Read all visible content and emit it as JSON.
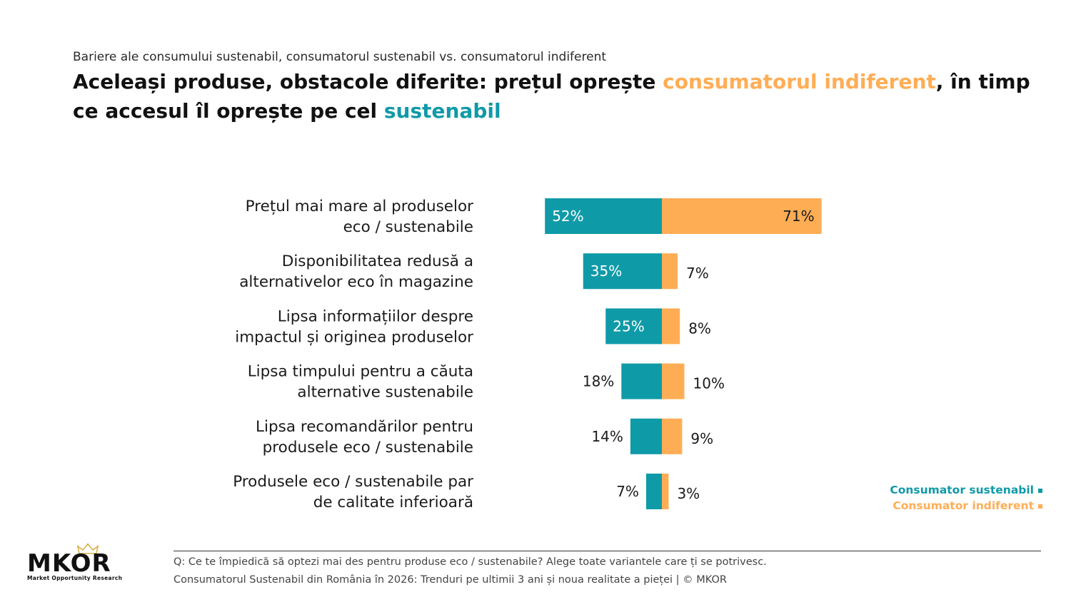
{
  "header": {
    "subtitle": "Bariere ale consumului sustenabil, consumatorul sustenabil vs. consumatorul indiferent",
    "title_part1": "Aceleași produse, obstacole diferite: prețul oprește ",
    "title_highlight1": "consumatorul indiferent",
    "title_part2": ", în timp ce accesul îl oprește pe cel ",
    "title_highlight2": "sustenabil"
  },
  "colors": {
    "sustenabil": "#0f9aa8",
    "indiferent": "#ffad55"
  },
  "chart_data": {
    "type": "bar",
    "orientation": "horizontal-diverging",
    "categories": [
      [
        "Prețul mai mare al produselor",
        "eco / sustenabile"
      ],
      [
        "Disponibilitatea redusă a",
        "alternativelor eco în magazine"
      ],
      [
        "Lipsa informațiilor despre",
        "impactul și originea produselor"
      ],
      [
        "Lipsa timpului pentru a căuta",
        "alternative sustenabile"
      ],
      [
        "Lipsa recomandărilor pentru",
        "produsele eco / sustenabile"
      ],
      [
        "Produsele eco / sustenabile par",
        "de calitate inferioară"
      ]
    ],
    "series": [
      {
        "name": "Consumator sustenabil",
        "values": [
          52,
          35,
          25,
          18,
          14,
          7
        ],
        "labels": [
          "52%",
          "35%",
          "25%",
          "18%",
          "14%",
          "7%"
        ]
      },
      {
        "name": "Consumator indiferent",
        "values": [
          71,
          7,
          8,
          10,
          9,
          3
        ],
        "labels": [
          "71%",
          "7%",
          "8%",
          "10%",
          "9%",
          "3%"
        ]
      }
    ],
    "legend_position": "bottom-right"
  },
  "legend": {
    "sustenabil": "Consumator sustenabil",
    "indiferent": "Consumator indiferent"
  },
  "logo": {
    "name": "MKOR",
    "tagline": "Market Opportunity Research"
  },
  "footer": {
    "question": "Q: Ce te împiedică să optezi mai des pentru produse eco / sustenabile? Alege toate variantele care ți se potrivesc.",
    "source": "Consumatorul Sustenabil din România în 2026: Trenduri pe ultimii 3 ani și noua realitate a pieței | © MKOR"
  }
}
